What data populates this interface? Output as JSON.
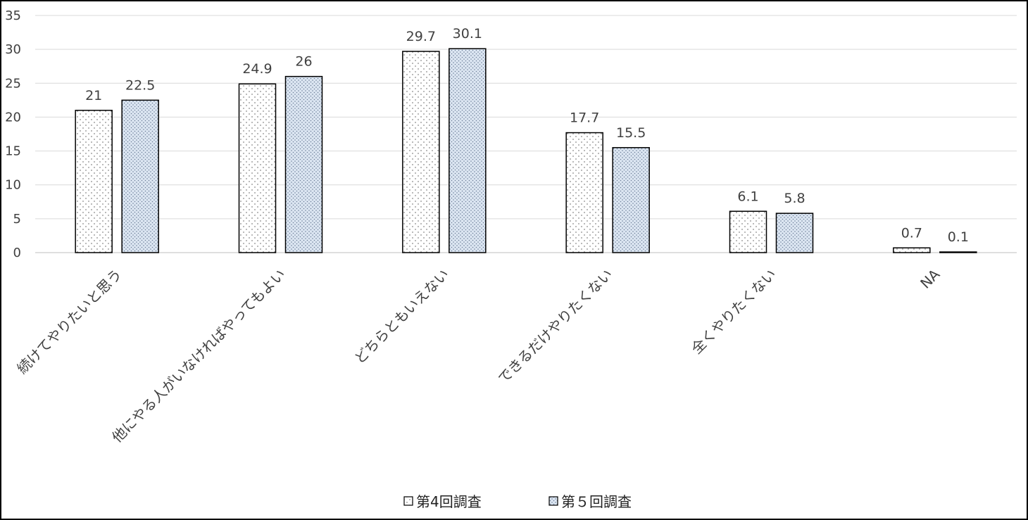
{
  "chart_data": {
    "type": "bar",
    "categories": [
      "続けてやりたいと思う",
      "他にやる人がいなければやってもよい",
      "どちらともいえない",
      "できるだけやりたくない",
      "全くやりたくない",
      "NA"
    ],
    "series": [
      {
        "name": "第4回調査",
        "values": [
          21,
          24.9,
          29.7,
          17.7,
          6.1,
          0.7
        ],
        "color": "#ffffff",
        "dot": "#8a8a8a"
      },
      {
        "name": "第５回調査",
        "values": [
          22.5,
          26,
          30.1,
          15.5,
          5.8,
          0.1
        ],
        "color": "#dce6f2",
        "dot": "#6d7f99"
      }
    ],
    "ylim": [
      0,
      35
    ],
    "yticks": [
      0,
      5,
      10,
      15,
      20,
      25,
      30,
      35
    ],
    "grid": true,
    "legend": "bottom",
    "title": "",
    "xlabel": "",
    "ylabel": ""
  }
}
